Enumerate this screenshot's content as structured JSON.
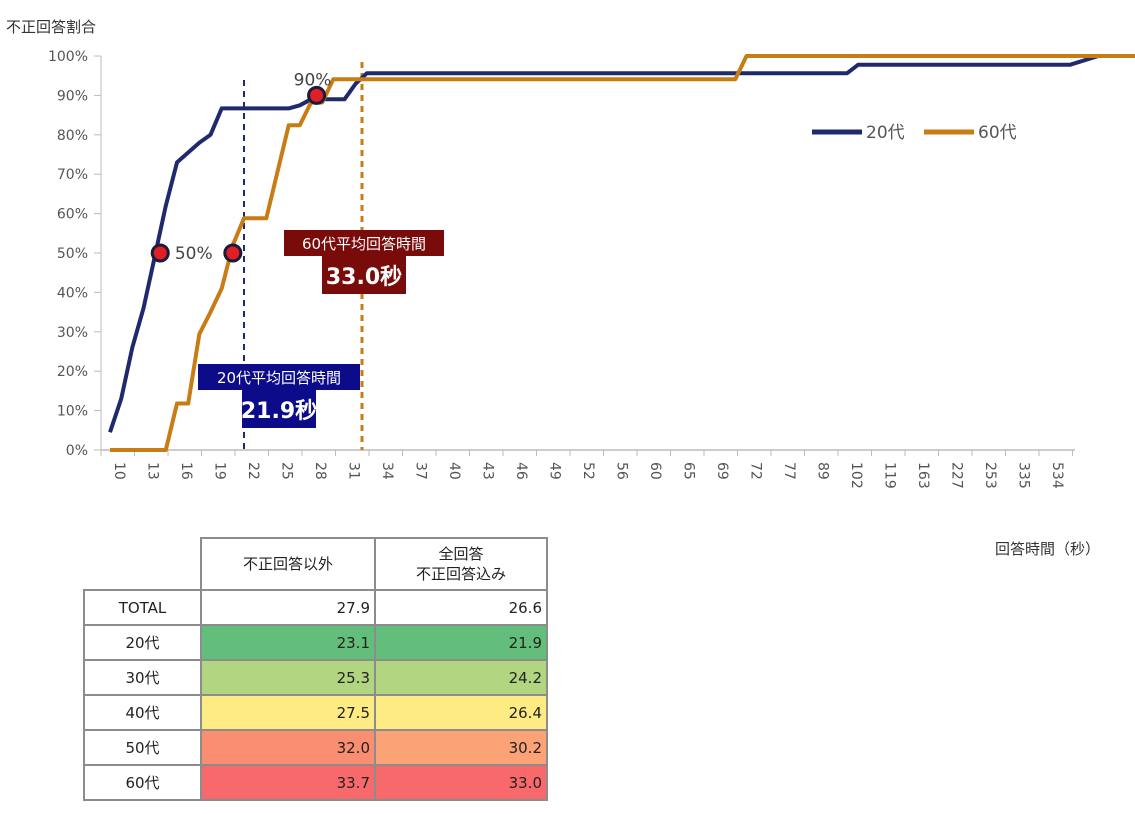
{
  "chart_data": {
    "type": "line",
    "ylabel": "不正回答割合",
    "xlabel": "回答時間（秒）",
    "y_ticks": [
      "0%",
      "10%",
      "20%",
      "30%",
      "40%",
      "50%",
      "60%",
      "70%",
      "80%",
      "90%",
      "100%"
    ],
    "ylim": [
      0,
      100
    ],
    "x_categories": [
      10,
      11,
      12,
      13,
      14,
      15,
      16,
      17,
      18,
      19,
      20,
      21,
      22,
      23,
      24,
      25,
      26,
      27,
      28,
      29,
      30,
      31,
      32,
      33,
      34,
      35,
      36,
      37,
      38,
      39,
      40,
      41,
      42,
      43,
      44,
      45,
      46,
      47,
      48,
      49,
      50,
      51,
      52,
      53,
      54,
      55,
      56,
      57,
      58,
      59,
      60,
      61,
      62,
      63,
      64,
      65,
      66,
      67,
      68,
      69,
      70,
      71,
      72,
      73,
      74,
      75,
      76,
      77,
      78,
      79,
      80,
      81,
      82,
      83,
      84,
      85,
      86,
      87,
      88,
      89,
      90,
      91,
      92,
      93,
      94,
      95,
      96,
      97,
      98,
      99,
      100,
      101,
      102,
      103,
      104,
      105,
      106,
      107,
      108,
      109,
      110,
      111,
      112,
      113,
      114,
      115,
      116,
      117,
      118,
      119,
      120,
      121,
      122,
      123,
      124,
      125,
      126,
      127,
      128,
      129,
      130,
      131,
      132,
      133,
      134,
      135,
      136,
      137,
      138,
      139,
      140,
      141,
      142,
      143,
      144,
      145,
      146,
      147,
      148,
      149,
      150,
      151,
      152,
      153,
      154,
      155,
      156,
      157,
      158,
      159,
      160,
      161,
      162,
      163,
      164,
      165,
      166,
      167,
      168,
      169,
      170,
      171,
      172,
      173,
      174,
      175,
      176,
      177,
      178,
      179,
      180,
      181,
      182,
      183,
      184,
      185,
      186,
      187,
      188,
      189,
      190,
      191,
      192,
      193,
      194,
      195,
      196,
      197,
      198,
      199,
      200,
      201,
      202,
      203,
      204,
      205,
      206,
      207,
      208,
      209,
      210,
      211,
      212,
      213,
      214,
      215,
      216,
      217,
      218,
      219,
      220,
      221,
      222,
      223,
      224,
      225,
      226,
      227,
      228,
      229,
      230,
      231,
      232,
      233,
      234,
      235,
      236,
      237,
      238,
      239,
      240,
      241,
      242,
      243,
      244,
      245,
      246,
      247,
      248,
      249,
      250,
      251,
      252,
      253,
      254,
      255,
      256,
      257,
      258,
      259,
      260,
      261,
      262,
      263,
      264,
      265,
      266,
      267,
      268,
      269,
      270,
      271,
      272,
      273,
      274,
      275,
      276,
      277,
      278,
      279,
      280,
      281,
      282,
      283,
      284,
      285,
      286,
      287,
      288,
      289,
      290,
      291,
      292,
      293,
      294,
      295,
      296,
      297,
      298,
      299,
      300,
      301,
      302,
      303,
      304,
      305,
      306,
      307,
      308,
      309,
      310,
      311,
      312,
      313,
      314,
      315,
      316,
      317,
      318,
      319,
      320,
      321,
      322,
      323,
      324,
      325,
      326,
      327,
      328,
      329,
      330,
      331,
      332,
      333,
      334,
      335,
      336,
      337,
      338,
      339,
      340,
      341,
      342,
      343,
      344,
      345,
      346,
      347,
      348,
      349,
      350,
      351,
      352,
      353,
      354,
      355,
      356,
      357,
      358,
      359,
      360,
      361,
      362,
      363,
      364,
      365,
      366,
      367,
      368,
      369,
      370,
      371,
      372,
      373,
      374,
      375,
      376,
      377,
      378,
      379,
      380,
      381,
      382,
      383,
      384,
      385,
      386,
      387,
      388,
      389,
      390,
      391,
      392,
      393,
      394,
      395,
      396,
      397,
      398,
      399,
      400,
      401,
      402,
      403,
      404,
      405,
      406,
      407,
      408,
      409,
      410,
      411,
      412,
      413,
      414,
      415,
      416,
      417,
      418,
      419,
      420,
      421,
      422,
      423,
      424,
      425,
      426,
      427,
      428,
      429,
      430,
      431,
      432,
      433,
      434,
      435,
      436,
      437,
      438,
      439,
      440,
      441,
      442,
      443,
      444,
      445,
      446,
      447,
      448,
      449,
      450,
      451,
      452,
      453,
      454,
      455,
      456,
      457,
      458,
      459,
      460,
      461,
      462,
      463,
      464,
      465,
      466,
      467,
      468,
      469,
      470,
      471,
      472,
      473,
      474,
      475,
      476,
      477,
      478,
      479,
      480,
      481,
      482,
      483,
      484,
      485,
      486,
      487,
      488,
      489,
      490,
      491,
      492,
      493,
      494,
      495,
      496,
      497,
      498,
      499,
      500,
      501,
      502,
      503,
      504,
      505,
      506,
      507,
      508,
      509,
      510,
      511,
      512,
      513,
      514,
      515,
      516,
      517,
      518,
      519,
      520,
      521,
      522,
      523,
      524,
      525,
      526,
      527,
      528,
      529,
      530,
      531,
      532,
      533,
      534,
      535,
      536,
      537,
      538,
      539,
      540
    ],
    "x_tick_labels": [
      "10",
      "13",
      "16",
      "19",
      "22",
      "25",
      "28",
      "31",
      "34",
      "37",
      "40",
      "43",
      "46",
      "49",
      "52",
      "56",
      "60",
      "65",
      "69",
      "72",
      "77",
      "89",
      "102",
      "119",
      "163",
      "227",
      "253",
      "335",
      "534"
    ],
    "series": [
      {
        "name": "20代",
        "color": "#1f2a6e",
        "points": [
          [
            10,
            4.5
          ],
          [
            11,
            13
          ],
          [
            12,
            26
          ],
          [
            13,
            36
          ],
          [
            14,
            49
          ],
          [
            15,
            62
          ],
          [
            16,
            73
          ],
          [
            17,
            75.5
          ],
          [
            18,
            78
          ],
          [
            19,
            80
          ],
          [
            20,
            86.7
          ],
          [
            21,
            86.7
          ],
          [
            22,
            86.7
          ],
          [
            23,
            86.7
          ],
          [
            24,
            86.7
          ],
          [
            25,
            86.7
          ],
          [
            26,
            86.7
          ],
          [
            27,
            87.5
          ],
          [
            28,
            89
          ],
          [
            29,
            89
          ],
          [
            30,
            89
          ],
          [
            31,
            89
          ],
          [
            32,
            93
          ],
          [
            33,
            95.6
          ],
          [
            34,
            95.6
          ],
          [
            35,
            95.6
          ],
          [
            36,
            95.6
          ],
          [
            37,
            95.6
          ],
          [
            38,
            95.6
          ],
          [
            39,
            95.6
          ],
          [
            40,
            95.6
          ],
          [
            41,
            95.6
          ],
          [
            42,
            95.6
          ],
          [
            43,
            95.6
          ],
          [
            44,
            95.6
          ],
          [
            45,
            95.6
          ],
          [
            46,
            95.6
          ],
          [
            47,
            95.6
          ],
          [
            48,
            95.6
          ],
          [
            49,
            95.6
          ],
          [
            50,
            95.6
          ],
          [
            51,
            95.6
          ],
          [
            52,
            95.6
          ],
          [
            53,
            95.6
          ],
          [
            54,
            95.6
          ],
          [
            55,
            95.6
          ],
          [
            56,
            95.6
          ],
          [
            57,
            95.6
          ],
          [
            58,
            95.6
          ],
          [
            59,
            95.6
          ],
          [
            60,
            95.6
          ],
          [
            61,
            95.6
          ],
          [
            62,
            95.6
          ],
          [
            63,
            95.6
          ],
          [
            64,
            95.6
          ],
          [
            65,
            95.6
          ],
          [
            66,
            95.6
          ],
          [
            67,
            95.6
          ],
          [
            68,
            95.6
          ],
          [
            69,
            95.6
          ],
          [
            70,
            95.6
          ],
          [
            71,
            95.6
          ],
          [
            72,
            95.6
          ],
          [
            73,
            95.6
          ],
          [
            74,
            95.6
          ],
          [
            75,
            95.6
          ],
          [
            76,
            95.6
          ],
          [
            77,
            97.8
          ],
          [
            78,
            97.8
          ],
          [
            79,
            97.8
          ],
          [
            80,
            97.8
          ],
          [
            89,
            97.8
          ],
          [
            102,
            97.8
          ],
          [
            119,
            97.8
          ],
          [
            163,
            97.8
          ],
          [
            227,
            97.8
          ],
          [
            253,
            97.8
          ],
          [
            300,
            100
          ],
          [
            335,
            100
          ],
          [
            540,
            100
          ]
        ]
      },
      {
        "name": "60代",
        "color": "#c97c14",
        "points": [
          [
            10,
            0
          ],
          [
            11,
            0
          ],
          [
            12,
            0
          ],
          [
            13,
            0
          ],
          [
            14,
            0
          ],
          [
            15,
            0
          ],
          [
            16,
            11.8
          ],
          [
            17,
            11.8
          ],
          [
            18,
            29.4
          ],
          [
            19,
            35
          ],
          [
            20,
            41
          ],
          [
            21,
            52
          ],
          [
            22,
            58.8
          ],
          [
            23,
            58.8
          ],
          [
            24,
            58.8
          ],
          [
            25,
            70.6
          ],
          [
            26,
            82.4
          ],
          [
            27,
            82.4
          ],
          [
            28,
            88.2
          ],
          [
            29,
            88.2
          ],
          [
            30,
            94.1
          ],
          [
            31,
            94.1
          ],
          [
            32,
            94.1
          ],
          [
            33,
            94.1
          ],
          [
            34,
            94.1
          ],
          [
            35,
            94.1
          ],
          [
            36,
            94.1
          ],
          [
            37,
            94.1
          ],
          [
            38,
            94.1
          ],
          [
            39,
            94.1
          ],
          [
            40,
            94.1
          ],
          [
            41,
            94.1
          ],
          [
            42,
            94.1
          ],
          [
            43,
            94.1
          ],
          [
            44,
            94.1
          ],
          [
            45,
            94.1
          ],
          [
            46,
            94.1
          ],
          [
            47,
            94.1
          ],
          [
            48,
            94.1
          ],
          [
            49,
            94.1
          ],
          [
            50,
            94.1
          ],
          [
            51,
            94.1
          ],
          [
            52,
            94.1
          ],
          [
            53,
            94.1
          ],
          [
            54,
            94.1
          ],
          [
            55,
            94.1
          ],
          [
            56,
            94.1
          ],
          [
            57,
            94.1
          ],
          [
            58,
            94.1
          ],
          [
            59,
            94.1
          ],
          [
            60,
            94.1
          ],
          [
            61,
            94.1
          ],
          [
            62,
            94.1
          ],
          [
            63,
            94.1
          ],
          [
            64,
            94.1
          ],
          [
            65,
            94.1
          ],
          [
            66,
            94.1
          ],
          [
            67,
            100
          ],
          [
            68,
            100
          ],
          [
            69,
            100
          ],
          [
            70,
            100
          ],
          [
            540,
            100
          ]
        ]
      }
    ],
    "markers": [
      {
        "series": "20代",
        "x": 14.5,
        "y": 50,
        "label": ""
      },
      {
        "series": "60代",
        "x": 21,
        "y": 50,
        "label": "50%"
      },
      {
        "series": "60代",
        "x": 28.5,
        "y": 90,
        "label": "90%"
      }
    ],
    "vlines": [
      {
        "x": 22,
        "series": "20代",
        "style": "dashed",
        "label": "20代平均回答時間",
        "value": "21.9秒"
      },
      {
        "x": 33,
        "series": "60代",
        "style": "dashed",
        "label": "60代平均回答時間",
        "value": "33.0秒"
      }
    ],
    "legend": {
      "placement": "right",
      "entries": [
        "20代",
        "60代"
      ]
    }
  },
  "table": {
    "headers": [
      "不正回答以外",
      "全回答\n不正回答込み"
    ],
    "rows": [
      {
        "label": "TOTAL",
        "v1": "27.9",
        "v2": "26.6",
        "c1": "#ffffff",
        "c2": "#ffffff"
      },
      {
        "label": "20代",
        "v1": "23.1",
        "v2": "21.9",
        "c1": "#63be7b",
        "c2": "#63be7b"
      },
      {
        "label": "30代",
        "v1": "25.3",
        "v2": "24.2",
        "c1": "#b1d580",
        "c2": "#b1d580"
      },
      {
        "label": "40代",
        "v1": "27.5",
        "v2": "26.4",
        "c1": "#ffeb84",
        "c2": "#ffeb84"
      },
      {
        "label": "50代",
        "v1": "32.0",
        "v2": "30.2",
        "c1": "#f98f70",
        "c2": "#fba276"
      },
      {
        "label": "60代",
        "v1": "33.7",
        "v2": "33.0",
        "c1": "#f8696b",
        "c2": "#f8696b"
      }
    ]
  }
}
